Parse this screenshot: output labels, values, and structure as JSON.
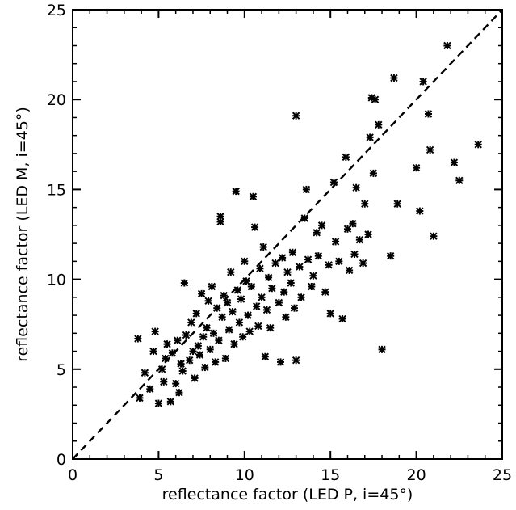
{
  "chart_data": {
    "type": "scatter",
    "title": "",
    "xlabel": "reflectance factor (LED P, i=45°)",
    "ylabel": "reflectance factor (LED M, i=45°)",
    "xlim": [
      0,
      25
    ],
    "ylim": [
      0,
      25
    ],
    "xticks": [
      "0",
      "5",
      "10",
      "15",
      "20",
      "25"
    ],
    "yticks": [
      "0",
      "5",
      "10",
      "15",
      "20",
      "25"
    ],
    "reference_line": {
      "style": "dashed",
      "from": [
        0,
        0
      ],
      "to": [
        25,
        25
      ]
    },
    "marker": "asterisk",
    "grid": false,
    "legend": "none",
    "points": [
      [
        3.8,
        6.7
      ],
      [
        3.9,
        3.4
      ],
      [
        4.2,
        4.8
      ],
      [
        4.5,
        3.9
      ],
      [
        4.7,
        6.0
      ],
      [
        4.8,
        7.1
      ],
      [
        5.0,
        3.1
      ],
      [
        5.2,
        5.0
      ],
      [
        5.3,
        4.3
      ],
      [
        5.4,
        5.6
      ],
      [
        5.5,
        6.4
      ],
      [
        5.7,
        3.2
      ],
      [
        5.8,
        5.9
      ],
      [
        6.0,
        4.2
      ],
      [
        6.1,
        6.6
      ],
      [
        6.2,
        3.7
      ],
      [
        6.3,
        5.3
      ],
      [
        6.4,
        4.9
      ],
      [
        6.5,
        9.8
      ],
      [
        6.6,
        6.9
      ],
      [
        6.8,
        5.5
      ],
      [
        6.9,
        7.6
      ],
      [
        7.0,
        6.0
      ],
      [
        7.1,
        4.5
      ],
      [
        7.2,
        8.1
      ],
      [
        7.3,
        6.3
      ],
      [
        7.4,
        5.8
      ],
      [
        7.5,
        9.2
      ],
      [
        7.6,
        6.8
      ],
      [
        7.7,
        5.1
      ],
      [
        7.8,
        7.3
      ],
      [
        7.9,
        8.8
      ],
      [
        8.0,
        6.1
      ],
      [
        8.1,
        9.6
      ],
      [
        8.2,
        7.0
      ],
      [
        8.3,
        5.4
      ],
      [
        8.4,
        8.4
      ],
      [
        8.5,
        6.6
      ],
      [
        8.6,
        13.5
      ],
      [
        8.6,
        13.2
      ],
      [
        8.7,
        7.9
      ],
      [
        8.8,
        9.1
      ],
      [
        8.9,
        5.6
      ],
      [
        9.0,
        8.7
      ],
      [
        9.1,
        7.2
      ],
      [
        9.2,
        10.4
      ],
      [
        9.3,
        8.2
      ],
      [
        9.4,
        6.4
      ],
      [
        9.5,
        14.9
      ],
      [
        9.6,
        9.4
      ],
      [
        9.7,
        7.6
      ],
      [
        9.8,
        8.9
      ],
      [
        9.9,
        6.8
      ],
      [
        10.0,
        11.0
      ],
      [
        10.1,
        9.9
      ],
      [
        10.2,
        8.0
      ],
      [
        10.3,
        7.1
      ],
      [
        10.4,
        9.6
      ],
      [
        10.5,
        14.6
      ],
      [
        10.6,
        12.9
      ],
      [
        10.7,
        8.5
      ],
      [
        10.8,
        7.4
      ],
      [
        10.9,
        10.6
      ],
      [
        11.0,
        9.0
      ],
      [
        11.1,
        11.8
      ],
      [
        11.2,
        5.7
      ],
      [
        11.3,
        8.3
      ],
      [
        11.4,
        10.1
      ],
      [
        11.5,
        7.3
      ],
      [
        11.6,
        9.5
      ],
      [
        11.8,
        10.9
      ],
      [
        12.0,
        8.7
      ],
      [
        12.1,
        5.4
      ],
      [
        12.2,
        11.2
      ],
      [
        12.3,
        9.3
      ],
      [
        12.4,
        7.9
      ],
      [
        12.5,
        10.4
      ],
      [
        12.7,
        9.8
      ],
      [
        12.8,
        11.5
      ],
      [
        12.9,
        8.4
      ],
      [
        13.0,
        19.1
      ],
      [
        13.0,
        5.5
      ],
      [
        13.2,
        10.7
      ],
      [
        13.3,
        9.0
      ],
      [
        13.5,
        13.4
      ],
      [
        13.6,
        15.0
      ],
      [
        13.7,
        11.1
      ],
      [
        13.9,
        9.6
      ],
      [
        14.0,
        10.2
      ],
      [
        14.2,
        12.6
      ],
      [
        14.3,
        11.3
      ],
      [
        14.5,
        13.0
      ],
      [
        14.7,
        9.3
      ],
      [
        14.9,
        10.8
      ],
      [
        15.0,
        8.1
      ],
      [
        15.2,
        15.4
      ],
      [
        15.3,
        12.1
      ],
      [
        15.5,
        11.0
      ],
      [
        15.7,
        7.8
      ],
      [
        15.9,
        16.8
      ],
      [
        16.0,
        12.8
      ],
      [
        16.1,
        10.5
      ],
      [
        16.3,
        13.1
      ],
      [
        16.4,
        11.4
      ],
      [
        16.5,
        15.1
      ],
      [
        16.7,
        12.2
      ],
      [
        16.9,
        10.9
      ],
      [
        17.0,
        14.2
      ],
      [
        17.2,
        12.5
      ],
      [
        17.3,
        17.9
      ],
      [
        17.4,
        20.1
      ],
      [
        17.6,
        20.0
      ],
      [
        17.5,
        15.9
      ],
      [
        17.8,
        18.6
      ],
      [
        18.0,
        6.1
      ],
      [
        18.5,
        11.3
      ],
      [
        18.7,
        21.2
      ],
      [
        18.9,
        14.2
      ],
      [
        20.0,
        16.2
      ],
      [
        20.2,
        13.8
      ],
      [
        20.4,
        21.0
      ],
      [
        20.7,
        19.2
      ],
      [
        20.8,
        17.2
      ],
      [
        21.0,
        12.4
      ],
      [
        21.8,
        23.0
      ],
      [
        22.2,
        16.5
      ],
      [
        22.5,
        15.5
      ],
      [
        23.6,
        17.5
      ]
    ]
  }
}
